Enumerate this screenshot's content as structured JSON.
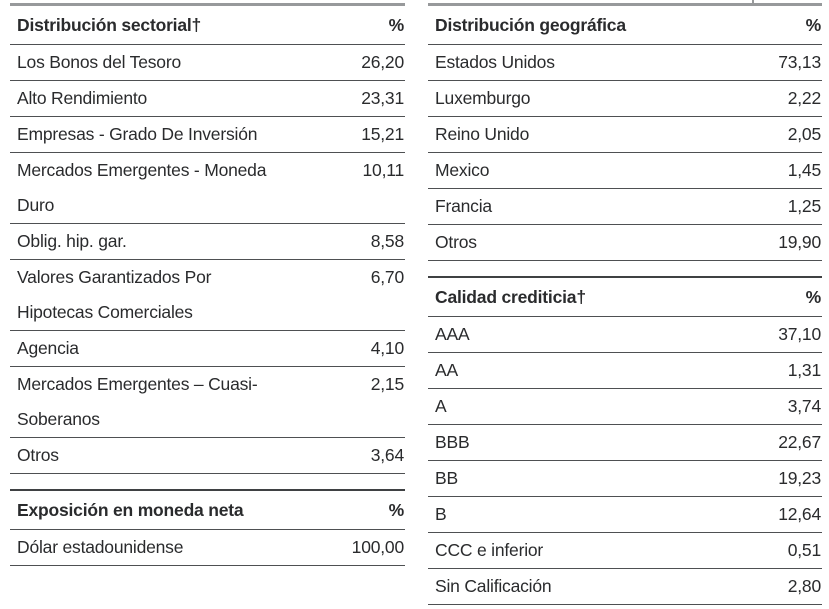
{
  "colors": {
    "background": "#ffffff",
    "text": "#2a2b2d",
    "row_line": "#4e5052",
    "table_top_border": "#3f4143",
    "page_top_border": "#97999b"
  },
  "tables": {
    "sector": {
      "title": "Distribución sectorial†",
      "unit": "%",
      "rows": [
        {
          "label": "Los Bonos del Tesoro",
          "value": "26,20"
        },
        {
          "label": "Alto Rendimiento",
          "value": "23,31"
        },
        {
          "label": "Empresas - Grado De Inversión",
          "value": "15,21"
        },
        {
          "label": "Mercados Emergentes - Moneda\nDuro",
          "value": "10,11"
        },
        {
          "label": "Oblig. hip. gar.",
          "value": "8,58"
        },
        {
          "label": "Valores Garantizados Por\nHipotecas Comerciales",
          "value": "6,70"
        },
        {
          "label": "Agencia",
          "value": "4,10"
        },
        {
          "label": "Mercados Emergentes – Cuasi-\nSoberanos",
          "value": "2,15"
        },
        {
          "label": "Otros",
          "value": "3,64"
        }
      ]
    },
    "currency": {
      "title": "Exposición en moneda neta",
      "unit": "%",
      "rows": [
        {
          "label": "Dólar estadounidense",
          "value": "100,00"
        }
      ]
    },
    "geography": {
      "title": "Distribución geográfica",
      "unit": "%",
      "rows": [
        {
          "label": "Estados Unidos",
          "value": "73,13"
        },
        {
          "label": "Luxemburgo",
          "value": "2,22"
        },
        {
          "label": "Reino Unido",
          "value": "2,05"
        },
        {
          "label": "Mexico",
          "value": "1,45"
        },
        {
          "label": "Francia",
          "value": "1,25"
        },
        {
          "label": "Otros",
          "value": "19,90"
        }
      ]
    },
    "credit": {
      "title": "Calidad crediticia†",
      "unit": "%",
      "rows": [
        {
          "label": "AAA",
          "value": "37,10"
        },
        {
          "label": "AA",
          "value": "1,31"
        },
        {
          "label": "A",
          "value": "3,74"
        },
        {
          "label": "BBB",
          "value": "22,67"
        },
        {
          "label": "BB",
          "value": "19,23"
        },
        {
          "label": "B",
          "value": "12,64"
        },
        {
          "label": "CCC e inferior",
          "value": "0,51"
        },
        {
          "label": "Sin Calificación",
          "value": "2,80"
        }
      ]
    }
  }
}
